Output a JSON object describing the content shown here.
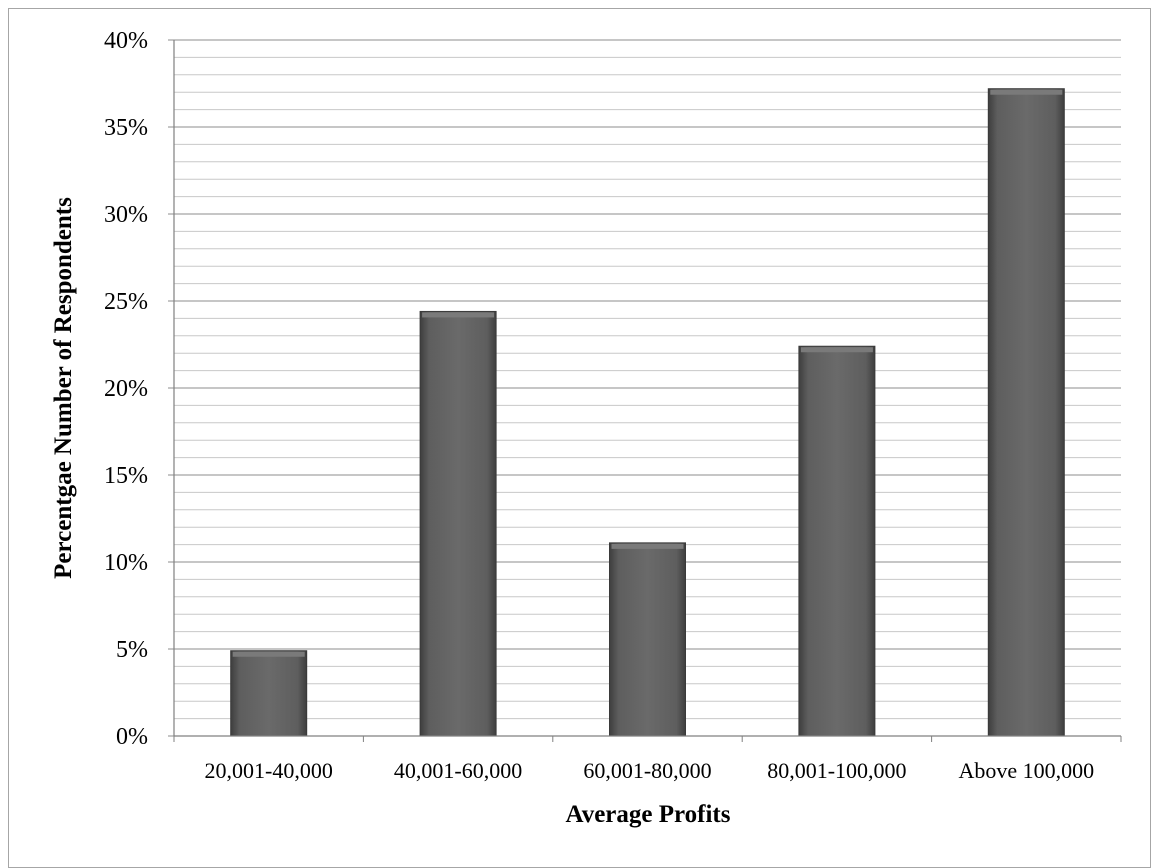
{
  "chart_data": {
    "type": "bar",
    "title": "",
    "xlabel": "Average Profits",
    "ylabel": "Percentgae Number of Respondents",
    "categories": [
      "20,001-40,000",
      "40,001-60,000",
      "60,001-80,000",
      "80,001-100,000",
      "Above 100,000"
    ],
    "values": [
      4.9,
      24.4,
      11.1,
      22.4,
      37.2
    ],
    "value_format": "percent",
    "ylim": [
      0,
      40
    ],
    "yticks": [
      0,
      5,
      10,
      15,
      20,
      25,
      30,
      35,
      40
    ],
    "ytick_labels": [
      "0%",
      "5%",
      "10%",
      "15%",
      "20%",
      "25%",
      "30%",
      "35%",
      "40%"
    ],
    "minor_gridline_step": 1,
    "grid": true,
    "legend": "none",
    "colors": {
      "bar": "#5a5a5a",
      "bar_edge": "#3a3a3a",
      "major_grid": "#8c8c8c",
      "minor_grid": "#c8c8c8",
      "axis": "#808080"
    }
  }
}
